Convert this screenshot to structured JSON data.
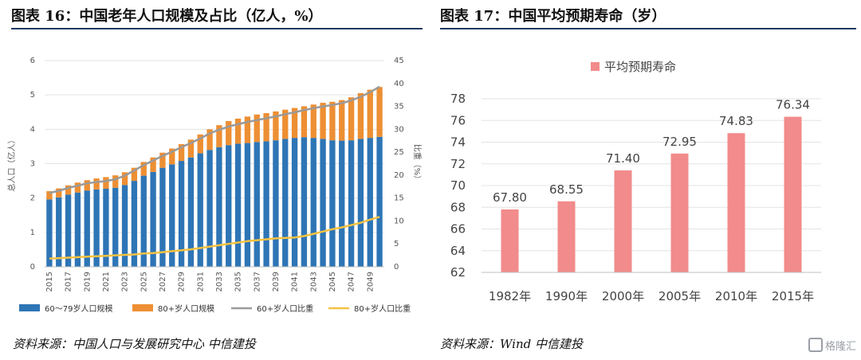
{
  "panels": {
    "left": {
      "title": "图表 16：中国老年人口规模及占比（亿人，%）",
      "source": "资料来源：中国人口与发展研究中心    中信建投"
    },
    "right": {
      "title": "图表 17：中国平均预期寿命（岁）",
      "source": "资料来源：Wind  中信建投"
    }
  },
  "watermark": "格隆汇",
  "chart_data": [
    {
      "type": "bar",
      "stacked": true,
      "categories": [
        2015,
        2016,
        2017,
        2018,
        2019,
        2020,
        2021,
        2022,
        2023,
        2024,
        2025,
        2026,
        2027,
        2028,
        2029,
        2030,
        2031,
        2032,
        2033,
        2034,
        2035,
        2036,
        2037,
        2038,
        2039,
        2040,
        2041,
        2042,
        2043,
        2044,
        2045,
        2046,
        2047,
        2048,
        2049,
        2050
      ],
      "x_tick_labels": [
        "2015",
        "2017",
        "2019",
        "2021",
        "2023",
        "2025",
        "2027",
        "2029",
        "2031",
        "2033",
        "2035",
        "2037",
        "2039",
        "2041",
        "2043",
        "2045",
        "2047",
        "2049"
      ],
      "ylabel": "总人口（亿人）",
      "ylabel_right": "比重（%）",
      "ylim": [
        0,
        6
      ],
      "ylim_right": [
        0,
        45
      ],
      "yticks": [
        0,
        1,
        2,
        3,
        4,
        5,
        6
      ],
      "yticks_right": [
        0,
        5,
        10,
        15,
        20,
        25,
        30,
        35,
        40,
        45
      ],
      "series": [
        {
          "name": "60～79岁人口规模",
          "kind": "bar",
          "axis": "left",
          "color": "#2e75b6",
          "values": [
            1.96,
            2.02,
            2.1,
            2.16,
            2.22,
            2.25,
            2.27,
            2.3,
            2.38,
            2.5,
            2.65,
            2.76,
            2.88,
            2.98,
            3.08,
            3.18,
            3.3,
            3.4,
            3.48,
            3.54,
            3.58,
            3.6,
            3.63,
            3.65,
            3.68,
            3.72,
            3.75,
            3.77,
            3.75,
            3.72,
            3.68,
            3.67,
            3.68,
            3.72,
            3.75,
            3.78
          ]
        },
        {
          "name": "80+岁人口规模",
          "kind": "bar",
          "axis": "left",
          "color": "#ed8f33",
          "values": [
            0.24,
            0.26,
            0.27,
            0.29,
            0.3,
            0.32,
            0.34,
            0.36,
            0.37,
            0.38,
            0.4,
            0.42,
            0.44,
            0.46,
            0.49,
            0.52,
            0.55,
            0.6,
            0.64,
            0.7,
            0.73,
            0.77,
            0.8,
            0.82,
            0.84,
            0.85,
            0.87,
            0.9,
            0.97,
            1.05,
            1.12,
            1.18,
            1.25,
            1.33,
            1.4,
            1.45
          ]
        },
        {
          "name": "60+岁人口比重",
          "kind": "line",
          "axis": "right",
          "color": "#9a9a9a",
          "values": [
            16.1,
            16.6,
            17.2,
            17.7,
            18.2,
            18.5,
            18.7,
            19.1,
            19.9,
            21.0,
            22.2,
            23.2,
            24.2,
            25.1,
            26.1,
            27.0,
            28.0,
            29.1,
            29.9,
            30.6,
            31.1,
            31.6,
            32.0,
            32.4,
            32.8,
            33.3,
            33.7,
            34.2,
            34.6,
            35.0,
            35.3,
            35.7,
            36.3,
            37.1,
            38.1,
            39.3
          ]
        },
        {
          "name": "80+岁人口比重",
          "kind": "line",
          "axis": "right",
          "color": "#f5c242",
          "values": [
            1.8,
            1.9,
            2.0,
            2.1,
            2.2,
            2.3,
            2.4,
            2.5,
            2.6,
            2.7,
            2.9,
            3.0,
            3.2,
            3.4,
            3.6,
            3.8,
            4.1,
            4.4,
            4.7,
            5.0,
            5.3,
            5.6,
            5.8,
            6.0,
            6.2,
            6.3,
            6.4,
            6.7,
            7.2,
            7.7,
            8.2,
            8.6,
            9.1,
            9.6,
            10.3,
            10.9
          ]
        }
      ],
      "grid": true,
      "legend": "bottom"
    },
    {
      "type": "bar",
      "categories": [
        "1982年",
        "1990年",
        "2000年",
        "2005年",
        "2010年",
        "2015年"
      ],
      "values": [
        67.8,
        68.55,
        71.4,
        72.95,
        74.83,
        76.34
      ],
      "data_labels": [
        "67.80",
        "68.55",
        "71.40",
        "72.95",
        "74.83",
        "76.34"
      ],
      "series_name": "平均预期寿命",
      "color": "#f28b8b",
      "ylim": [
        62,
        78
      ],
      "yticks": [
        62,
        64,
        66,
        68,
        70,
        72,
        74,
        76,
        78
      ],
      "grid": true,
      "legend": "top-left"
    }
  ]
}
